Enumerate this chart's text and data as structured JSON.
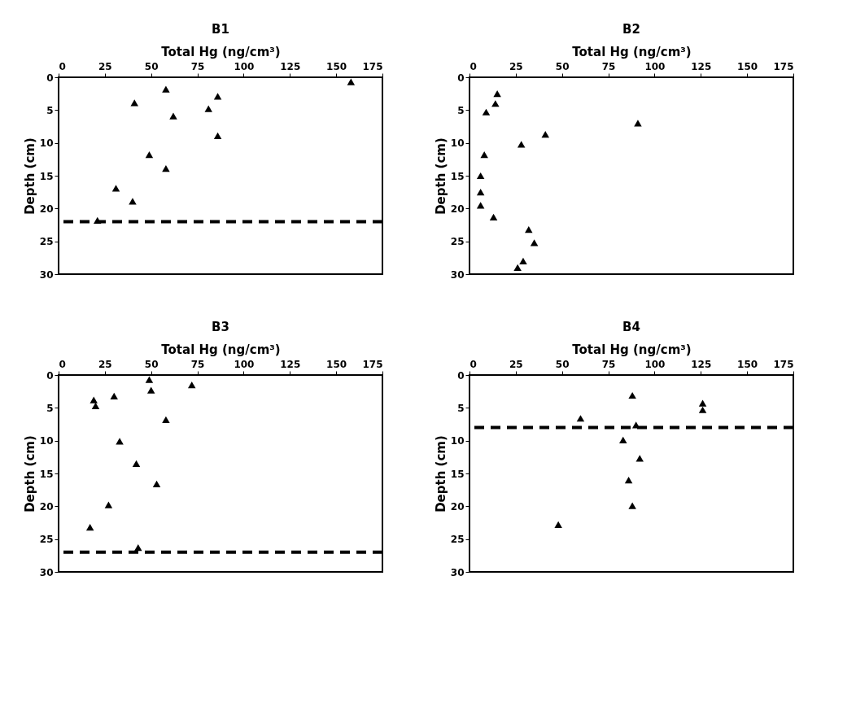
{
  "chart_data": [
    {
      "type": "scatter",
      "title": "B1",
      "xlabel": "Total Hg (ng/cm³)",
      "ylabel": "Depth (cm)",
      "xlim": [
        0,
        175
      ],
      "xticks": [
        0,
        25,
        50,
        75,
        100,
        125,
        150,
        175
      ],
      "ylim": [
        30,
        0
      ],
      "yticks": [
        0,
        5,
        10,
        15,
        20,
        25,
        30
      ],
      "grid": false,
      "marker": "triangle",
      "series": [
        {
          "color": "#000000",
          "x": [
            158,
            58,
            86,
            41,
            81,
            62,
            86,
            49,
            58,
            31,
            40,
            21
          ],
          "values": [
            0.7,
            1.8,
            2.9,
            3.9,
            4.8,
            5.9,
            8.9,
            11.8,
            13.9,
            16.9,
            18.9,
            21.8
          ]
        }
      ],
      "ref_lines": [
        {
          "axis": "y",
          "value": 22,
          "color": "#000000",
          "line_style": "dashed"
        }
      ]
    },
    {
      "type": "scatter",
      "title": "B2",
      "xlabel": "Total Hg (ng/cm³)",
      "ylabel": "Depth (cm)",
      "xlim": [
        0,
        175
      ],
      "xticks": [
        0,
        25,
        50,
        75,
        100,
        125,
        150,
        175
      ],
      "ylim": [
        30,
        0
      ],
      "yticks": [
        0,
        5,
        10,
        15,
        20,
        25,
        30
      ],
      "grid": false,
      "marker": "triangle",
      "series": [
        {
          "color": "#000000",
          "x": [
            15,
            14,
            9,
            91,
            41,
            28,
            8,
            6,
            6,
            6,
            13,
            32,
            35,
            29,
            26
          ],
          "values": [
            2.5,
            4,
            5.3,
            7,
            8.7,
            10.2,
            11.8,
            15,
            17.5,
            19.5,
            21.3,
            23.2,
            25.2,
            28,
            29
          ]
        }
      ]
    },
    {
      "type": "scatter",
      "title": "B3",
      "xlabel": "Total Hg (ng/cm³)",
      "ylabel": "Depth (cm)",
      "xlim": [
        0,
        175
      ],
      "xticks": [
        0,
        25,
        50,
        75,
        100,
        125,
        150,
        175
      ],
      "ylim": [
        30,
        0
      ],
      "yticks": [
        0,
        5,
        10,
        15,
        20,
        25,
        30
      ],
      "grid": false,
      "marker": "triangle",
      "series": [
        {
          "color": "#000000",
          "x": [
            19,
            20,
            30,
            49,
            50,
            72,
            58,
            33,
            42,
            53,
            27,
            17,
            43
          ],
          "values": [
            3.8,
            4.7,
            3.2,
            0.7,
            2.3,
            1.5,
            6.8,
            10.1,
            13.5,
            16.6,
            19.8,
            23.2,
            26.3
          ]
        }
      ],
      "ref_lines": [
        {
          "axis": "y",
          "value": 27,
          "color": "#000000",
          "line_style": "dashed"
        }
      ]
    },
    {
      "type": "scatter",
      "title": "B4",
      "xlabel": "Total Hg (ng/cm³)",
      "ylabel": "Depth (cm)",
      "xlim": [
        0,
        175
      ],
      "xticks": [
        0,
        25,
        50,
        75,
        100,
        125,
        150,
        175
      ],
      "ylim": [
        30,
        0
      ],
      "yticks": [
        0,
        5,
        10,
        15,
        20,
        25,
        30
      ],
      "grid": false,
      "marker": "triangle",
      "series": [
        {
          "color": "#000000",
          "x": [
            88,
            126,
            126,
            60,
            90,
            83,
            92,
            86,
            88,
            48
          ],
          "values": [
            3.1,
            4.3,
            5.3,
            6.6,
            7.6,
            9.9,
            12.7,
            16,
            19.9,
            22.8
          ]
        }
      ],
      "ref_lines": [
        {
          "axis": "y",
          "value": 8,
          "color": "#000000",
          "line_style": "dashed"
        }
      ]
    }
  ]
}
